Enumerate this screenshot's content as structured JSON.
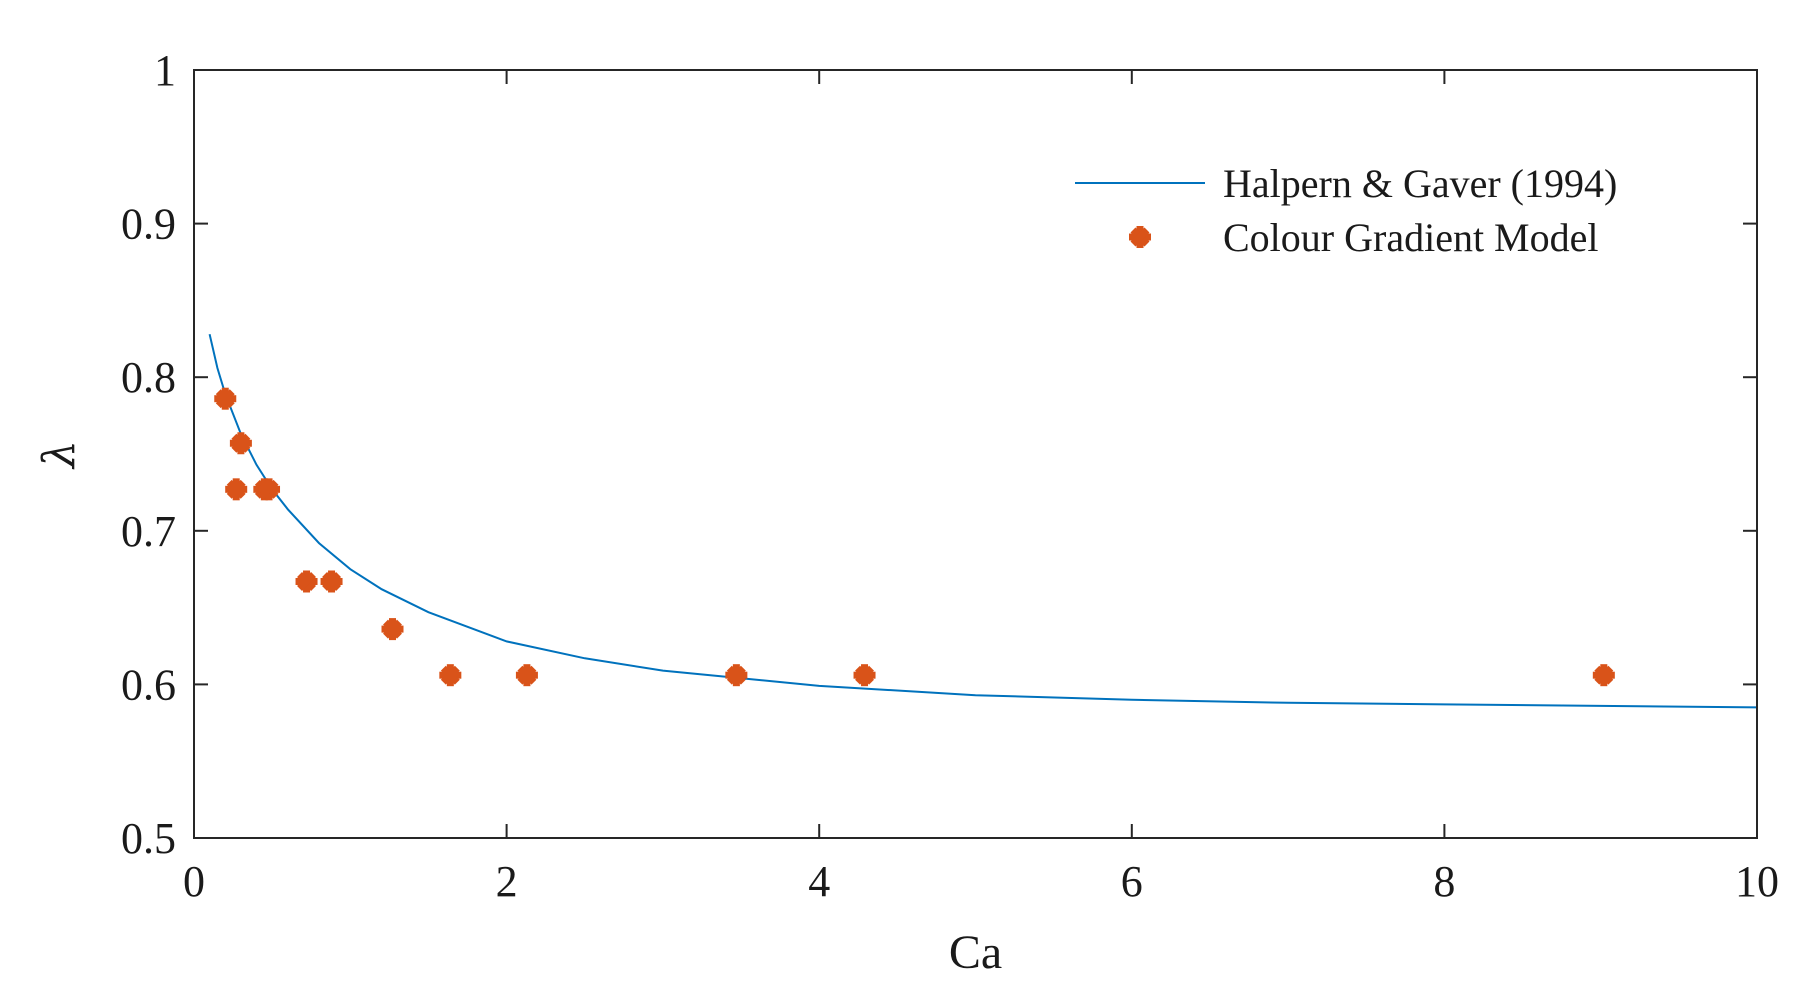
{
  "chart_data": {
    "type": "line",
    "title": "",
    "xlabel": "Ca",
    "ylabel": "λ",
    "xlim": [
      0,
      10
    ],
    "ylim": [
      0.5,
      1
    ],
    "xticks": [
      0,
      2,
      4,
      6,
      8,
      10
    ],
    "xtick_labels": [
      "0",
      "2",
      "4",
      "6",
      "8",
      "10"
    ],
    "yticks": [
      0.5,
      0.6,
      0.7,
      0.8,
      0.9,
      1.0
    ],
    "ytick_labels": [
      "0.5",
      "0.6",
      "0.7",
      "0.8",
      "0.9",
      "1"
    ],
    "grid": false,
    "legend_position": "top-right",
    "series": [
      {
        "name": "Halpern & Gaver (1994)",
        "kind": "line",
        "color": "#0072BD",
        "x": [
          0.1,
          0.15,
          0.2,
          0.3,
          0.4,
          0.5,
          0.6,
          0.8,
          1.0,
          1.2,
          1.5,
          2.0,
          2.5,
          3.0,
          4.0,
          5.0,
          6.0,
          7.0,
          8.0,
          9.0,
          10.0
        ],
        "y": [
          0.828,
          0.806,
          0.789,
          0.763,
          0.743,
          0.727,
          0.714,
          0.692,
          0.675,
          0.662,
          0.647,
          0.628,
          0.617,
          0.609,
          0.599,
          0.593,
          0.59,
          0.588,
          0.587,
          0.586,
          0.585
        ]
      },
      {
        "name": "Colour Gradient Model",
        "kind": "scatter",
        "color": "#D95319",
        "x": [
          0.2,
          0.3,
          0.27,
          0.45,
          0.48,
          0.72,
          0.88,
          1.27,
          1.64,
          2.13,
          3.47,
          4.29,
          9.02
        ],
        "y": [
          0.786,
          0.757,
          0.727,
          0.727,
          0.727,
          0.667,
          0.667,
          0.636,
          0.606,
          0.606,
          0.606,
          0.606,
          0.606
        ]
      }
    ]
  }
}
